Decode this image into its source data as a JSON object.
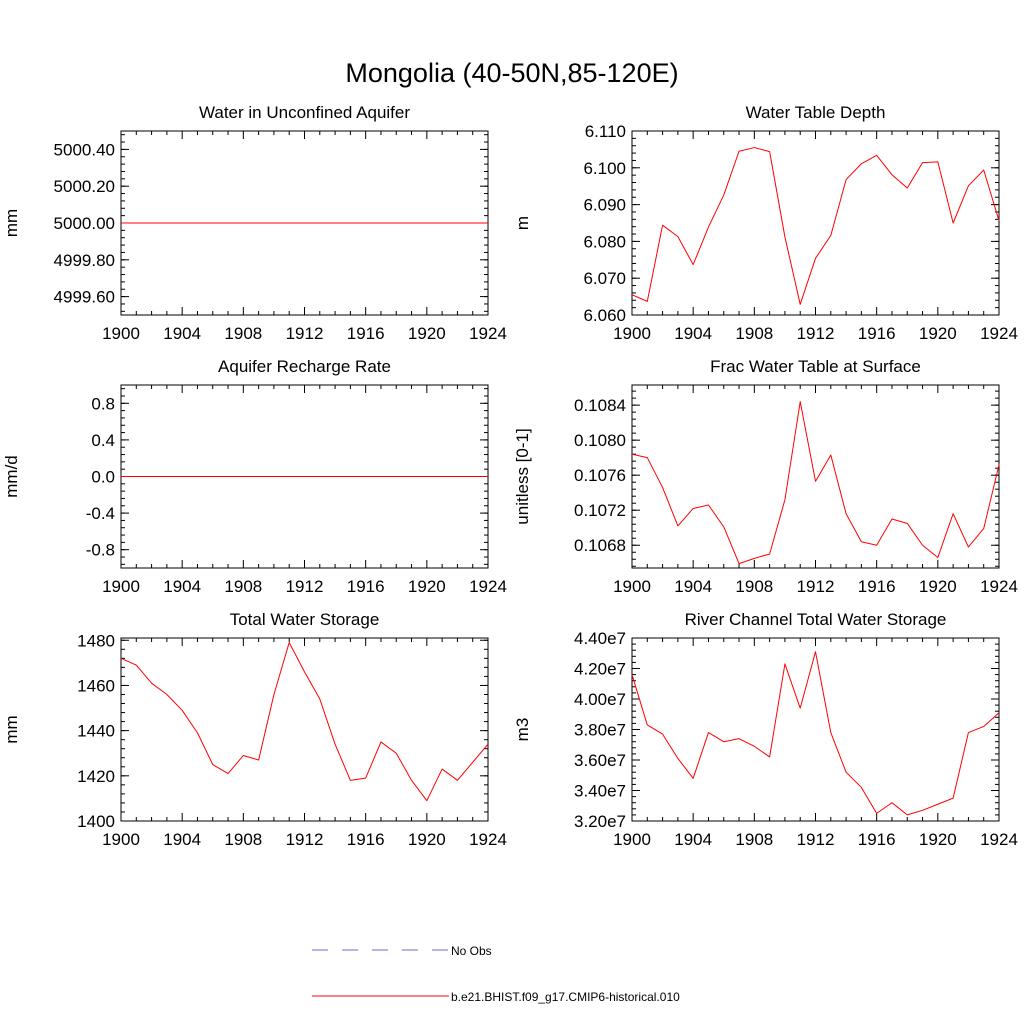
{
  "figure": {
    "title": "Mongolia (40-50N,85-120E)"
  },
  "legend": {
    "items": [
      {
        "label": "No Obs",
        "color": "#6a6acd",
        "style": "dashed"
      },
      {
        "label": "b.e21.BHIST.f09_g17.CMIP6-historical.010",
        "color": "#ff0000",
        "style": "solid"
      }
    ]
  },
  "chart_data": [
    {
      "type": "line",
      "title": "Water in Unconfined Aquifer",
      "ylabel": "mm",
      "xlim": [
        1900,
        1924
      ],
      "ylim": [
        4999.5,
        5000.5
      ],
      "x_ticks": [
        1900,
        1904,
        1908,
        1912,
        1916,
        1920,
        1924
      ],
      "x_tick_labels": [
        "1900",
        "1904",
        "1908",
        "1912",
        "1916",
        "1920",
        "1924"
      ],
      "y_ticks": [
        4999.6,
        4999.8,
        5000.0,
        5000.2,
        5000.4
      ],
      "y_tick_labels": [
        "4999.60",
        "4999.80",
        "5000.00",
        "5000.20",
        "5000.40"
      ],
      "series": [
        {
          "color": "#ff0000",
          "x": [
            1900,
            1901,
            1902,
            1903,
            1904,
            1905,
            1906,
            1907,
            1908,
            1909,
            1910,
            1911,
            1912,
            1913,
            1914,
            1915,
            1916,
            1917,
            1918,
            1919,
            1920,
            1921,
            1922,
            1923,
            1924
          ],
          "values": [
            5000,
            5000,
            5000,
            5000,
            5000,
            5000,
            5000,
            5000,
            5000,
            5000,
            5000,
            5000,
            5000,
            5000,
            5000,
            5000,
            5000,
            5000,
            5000,
            5000,
            5000,
            5000,
            5000,
            5000,
            5000
          ]
        }
      ]
    },
    {
      "type": "line",
      "title": "Water Table Depth",
      "ylabel": "m",
      "xlim": [
        1900,
        1924
      ],
      "ylim": [
        6.06,
        6.11
      ],
      "x_ticks": [
        1900,
        1904,
        1908,
        1912,
        1916,
        1920,
        1924
      ],
      "x_tick_labels": [
        "1900",
        "1904",
        "1908",
        "1912",
        "1916",
        "1920",
        "1924"
      ],
      "y_ticks": [
        6.06,
        6.07,
        6.08,
        6.09,
        6.1,
        6.11
      ],
      "y_tick_labels": [
        "6.060",
        "6.070",
        "6.080",
        "6.090",
        "6.100",
        "6.110"
      ],
      "series": [
        {
          "color": "#ff0000",
          "x": [
            1900,
            1901,
            1902,
            1903,
            1904,
            1905,
            1906,
            1907,
            1908,
            1909,
            1910,
            1911,
            1912,
            1913,
            1914,
            1915,
            1916,
            1917,
            1918,
            1919,
            1920,
            1921,
            1922,
            1923,
            1924
          ],
          "values": [
            6.0655,
            6.0637,
            6.0844,
            6.0813,
            6.0737,
            6.0839,
            6.0926,
            6.1045,
            6.1055,
            6.1044,
            6.0812,
            6.0629,
            6.0754,
            6.0816,
            6.0968,
            6.1011,
            6.1034,
            6.0981,
            6.0945,
            6.1014,
            6.1016,
            6.085,
            6.0951,
            6.0994,
            6.0856
          ]
        }
      ]
    },
    {
      "type": "line",
      "title": "Aquifer Recharge Rate",
      "ylabel": "mm/d",
      "xlim": [
        1900,
        1924
      ],
      "ylim": [
        -1.0,
        1.0
      ],
      "x_ticks": [
        1900,
        1904,
        1908,
        1912,
        1916,
        1920,
        1924
      ],
      "x_tick_labels": [
        "1900",
        "1904",
        "1908",
        "1912",
        "1916",
        "1920",
        "1924"
      ],
      "y_ticks": [
        -0.8,
        -0.4,
        0.0,
        0.4,
        0.8
      ],
      "y_tick_labels": [
        "-0.8",
        "-0.4",
        "0.0",
        "0.4",
        "0.8"
      ],
      "series": [
        {
          "color": "#ff0000",
          "x": [
            1900,
            1901,
            1902,
            1903,
            1904,
            1905,
            1906,
            1907,
            1908,
            1909,
            1910,
            1911,
            1912,
            1913,
            1914,
            1915,
            1916,
            1917,
            1918,
            1919,
            1920,
            1921,
            1922,
            1923,
            1924
          ],
          "values": [
            0,
            0,
            0,
            0,
            0,
            0,
            0,
            0,
            0,
            0,
            0,
            0,
            0,
            0,
            0,
            0,
            0,
            0,
            0,
            0,
            0,
            0,
            0,
            0,
            0
          ]
        }
      ]
    },
    {
      "type": "line",
      "title": "Frac Water Table at Surface",
      "ylabel": "unitless [0-1]",
      "xlim": [
        1900,
        1924
      ],
      "ylim": [
        0.10654,
        0.10863
      ],
      "x_ticks": [
        1900,
        1904,
        1908,
        1912,
        1916,
        1920,
        1924
      ],
      "x_tick_labels": [
        "1900",
        "1904",
        "1908",
        "1912",
        "1916",
        "1920",
        "1924"
      ],
      "y_ticks": [
        0.1068,
        0.1072,
        0.1076,
        0.108,
        0.1084
      ],
      "y_tick_labels": [
        "0.1068",
        "0.1072",
        "0.1076",
        "0.1080",
        "0.1084"
      ],
      "series": [
        {
          "color": "#ff0000",
          "x": [
            1900,
            1901,
            1902,
            1903,
            1904,
            1905,
            1906,
            1907,
            1908,
            1909,
            1910,
            1911,
            1912,
            1913,
            1914,
            1915,
            1916,
            1917,
            1918,
            1919,
            1920,
            1921,
            1922,
            1923,
            1924
          ],
          "values": [
            0.10784,
            0.1078,
            0.10746,
            0.10702,
            0.10722,
            0.10726,
            0.10701,
            0.10659,
            0.10665,
            0.1067,
            0.10732,
            0.10844,
            0.10753,
            0.10783,
            0.10716,
            0.10684,
            0.1068,
            0.1071,
            0.10705,
            0.1068,
            0.10666,
            0.10716,
            0.10678,
            0.10699,
            0.10772
          ]
        }
      ]
    },
    {
      "type": "line",
      "title": "Total Water Storage",
      "ylabel": "mm",
      "xlim": [
        1900,
        1924
      ],
      "ylim": [
        1400,
        1481
      ],
      "x_ticks": [
        1900,
        1904,
        1908,
        1912,
        1916,
        1920,
        1924
      ],
      "x_tick_labels": [
        "1900",
        "1904",
        "1908",
        "1912",
        "1916",
        "1920",
        "1924"
      ],
      "y_ticks": [
        1400,
        1420,
        1440,
        1460,
        1480
      ],
      "y_tick_labels": [
        "1400",
        "1420",
        "1440",
        "1460",
        "1480"
      ],
      "series": [
        {
          "color": "#ff0000",
          "x": [
            1900,
            1901,
            1902,
            1903,
            1904,
            1905,
            1906,
            1907,
            1908,
            1909,
            1910,
            1911,
            1912,
            1913,
            1914,
            1915,
            1916,
            1917,
            1918,
            1919,
            1920,
            1921,
            1922,
            1923,
            1924
          ],
          "values": [
            1472,
            1469,
            1461,
            1456,
            1449,
            1439,
            1425,
            1421,
            1429,
            1427,
            1456,
            1479,
            1466,
            1454,
            1434,
            1418,
            1419,
            1435,
            1430,
            1418,
            1409,
            1423,
            1418,
            1426,
            1434
          ]
        }
      ]
    },
    {
      "type": "line",
      "title": "River Channel Total Water Storage",
      "ylabel": "m3",
      "xlim": [
        1900,
        1924
      ],
      "ylim": [
        32000000,
        44000000
      ],
      "x_ticks": [
        1900,
        1904,
        1908,
        1912,
        1916,
        1920,
        1924
      ],
      "x_tick_labels": [
        "1900",
        "1904",
        "1908",
        "1912",
        "1916",
        "1920",
        "1924"
      ],
      "y_ticks": [
        32000000,
        34000000,
        36000000,
        38000000,
        40000000,
        42000000,
        44000000
      ],
      "y_tick_labels": [
        "3.20e7",
        "3.40e7",
        "3.60e7",
        "3.80e7",
        "4.00e7",
        "4.20e7",
        "4.40e7"
      ],
      "series": [
        {
          "color": "#ff0000",
          "x": [
            1900,
            1901,
            1902,
            1903,
            1904,
            1905,
            1906,
            1907,
            1908,
            1909,
            1910,
            1911,
            1912,
            1913,
            1914,
            1915,
            1916,
            1917,
            1918,
            1919,
            1920,
            1921,
            1922,
            1923,
            1924
          ],
          "values": [
            41600000,
            38300000,
            37700000,
            36100000,
            34800000,
            37800000,
            37200000,
            37400000,
            36900000,
            36200000,
            42300000,
            39400000,
            43100000,
            37800000,
            35200000,
            34200000,
            32500000,
            33200000,
            32400000,
            32700000,
            33100000,
            33500000,
            37800000,
            38200000,
            39100000
          ]
        }
      ]
    }
  ]
}
